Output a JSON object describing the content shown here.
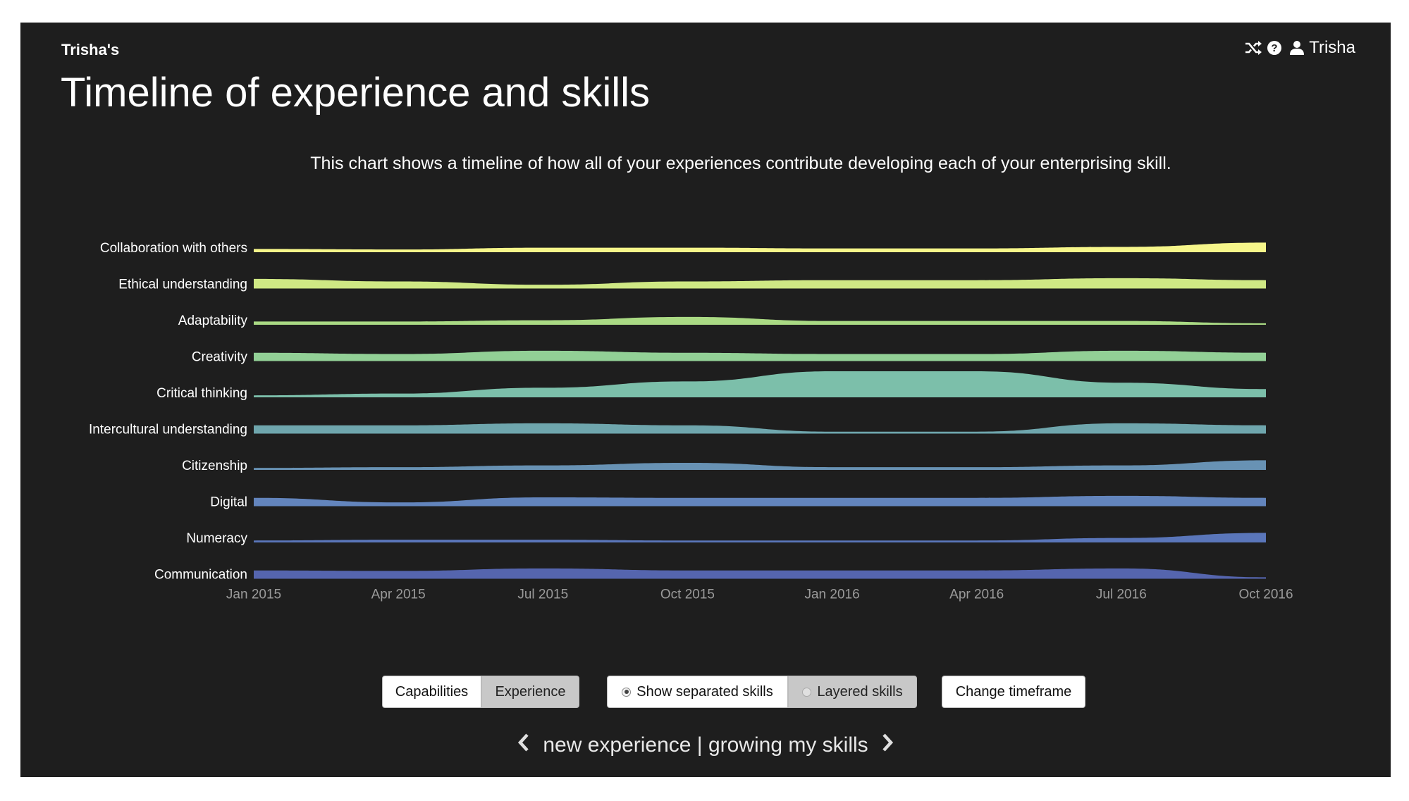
{
  "header": {
    "owner": "Trisha's",
    "title": "Timeline of experience and skills",
    "user_name": "Trisha",
    "icons": [
      "shuffle-icon",
      "help-icon",
      "user-icon"
    ]
  },
  "description": "This chart shows a timeline of how all of your experiences contribute developing each of your enterprising skill.",
  "chart_data": {
    "type": "area",
    "subtype": "ridgeline",
    "x": [
      "Jan 2015",
      "Apr 2015",
      "Jul 2015",
      "Oct 2015",
      "Jan 2016",
      "Apr 2016",
      "Jul 2016",
      "Oct 2016"
    ],
    "x_ticks": [
      "Jan 2015",
      "Apr 2015",
      "Jul 2015",
      "Oct 2015",
      "Jan 2016",
      "Apr 2016",
      "Jul 2016",
      "Oct 2016"
    ],
    "ylim": [
      0,
      10
    ],
    "grid": false,
    "series": [
      {
        "name": "Collaboration with others",
        "color": "#f6f68a",
        "values": [
          1,
          0.8,
          1.5,
          1.5,
          1.2,
          1.2,
          1.8,
          3.5
        ]
      },
      {
        "name": "Ethical understanding",
        "color": "#cfe884",
        "values": [
          3.5,
          2.5,
          1.2,
          2.5,
          3,
          3,
          3.8,
          3
        ]
      },
      {
        "name": "Adaptability",
        "color": "#aada84",
        "values": [
          1,
          1,
          1.5,
          2.8,
          1.2,
          1.2,
          1.2,
          0.3
        ]
      },
      {
        "name": "Creativity",
        "color": "#92d096",
        "values": [
          3,
          2.5,
          3.8,
          3,
          2.5,
          2.5,
          3.8,
          3
        ]
      },
      {
        "name": "Critical thinking",
        "color": "#7cbfaa",
        "values": [
          0.5,
          1.2,
          3.5,
          6,
          10,
          10,
          5.5,
          3
        ]
      },
      {
        "name": "Intercultural understanding",
        "color": "#6fa6ad",
        "values": [
          3,
          3,
          3.8,
          3,
          0.5,
          0.5,
          3.8,
          3
        ]
      },
      {
        "name": "Citizenship",
        "color": "#6892b4",
        "values": [
          0.5,
          0.8,
          1.5,
          2.5,
          0.8,
          0.8,
          1.5,
          3.5
        ]
      },
      {
        "name": "Digital",
        "color": "#6385bd",
        "values": [
          3,
          1.2,
          3.2,
          3,
          3,
          3,
          3.8,
          3
        ]
      },
      {
        "name": "Numeracy",
        "color": "#5a76ba",
        "values": [
          0.5,
          0.8,
          0.8,
          0.5,
          0.5,
          0.5,
          1.5,
          3.5
        ]
      },
      {
        "name": "Communication",
        "color": "#5565ae",
        "values": [
          3,
          2.8,
          3.8,
          3,
          3,
          3,
          3.8,
          0.3
        ]
      }
    ]
  },
  "controls": {
    "capabilities_label": "Capabilities",
    "experience_label": "Experience",
    "separated_label": "Show separated skills",
    "layered_label": "Layered skills",
    "timeframe_label": "Change timeframe"
  },
  "footer": {
    "nav_text": "new experience | growing my skills"
  }
}
